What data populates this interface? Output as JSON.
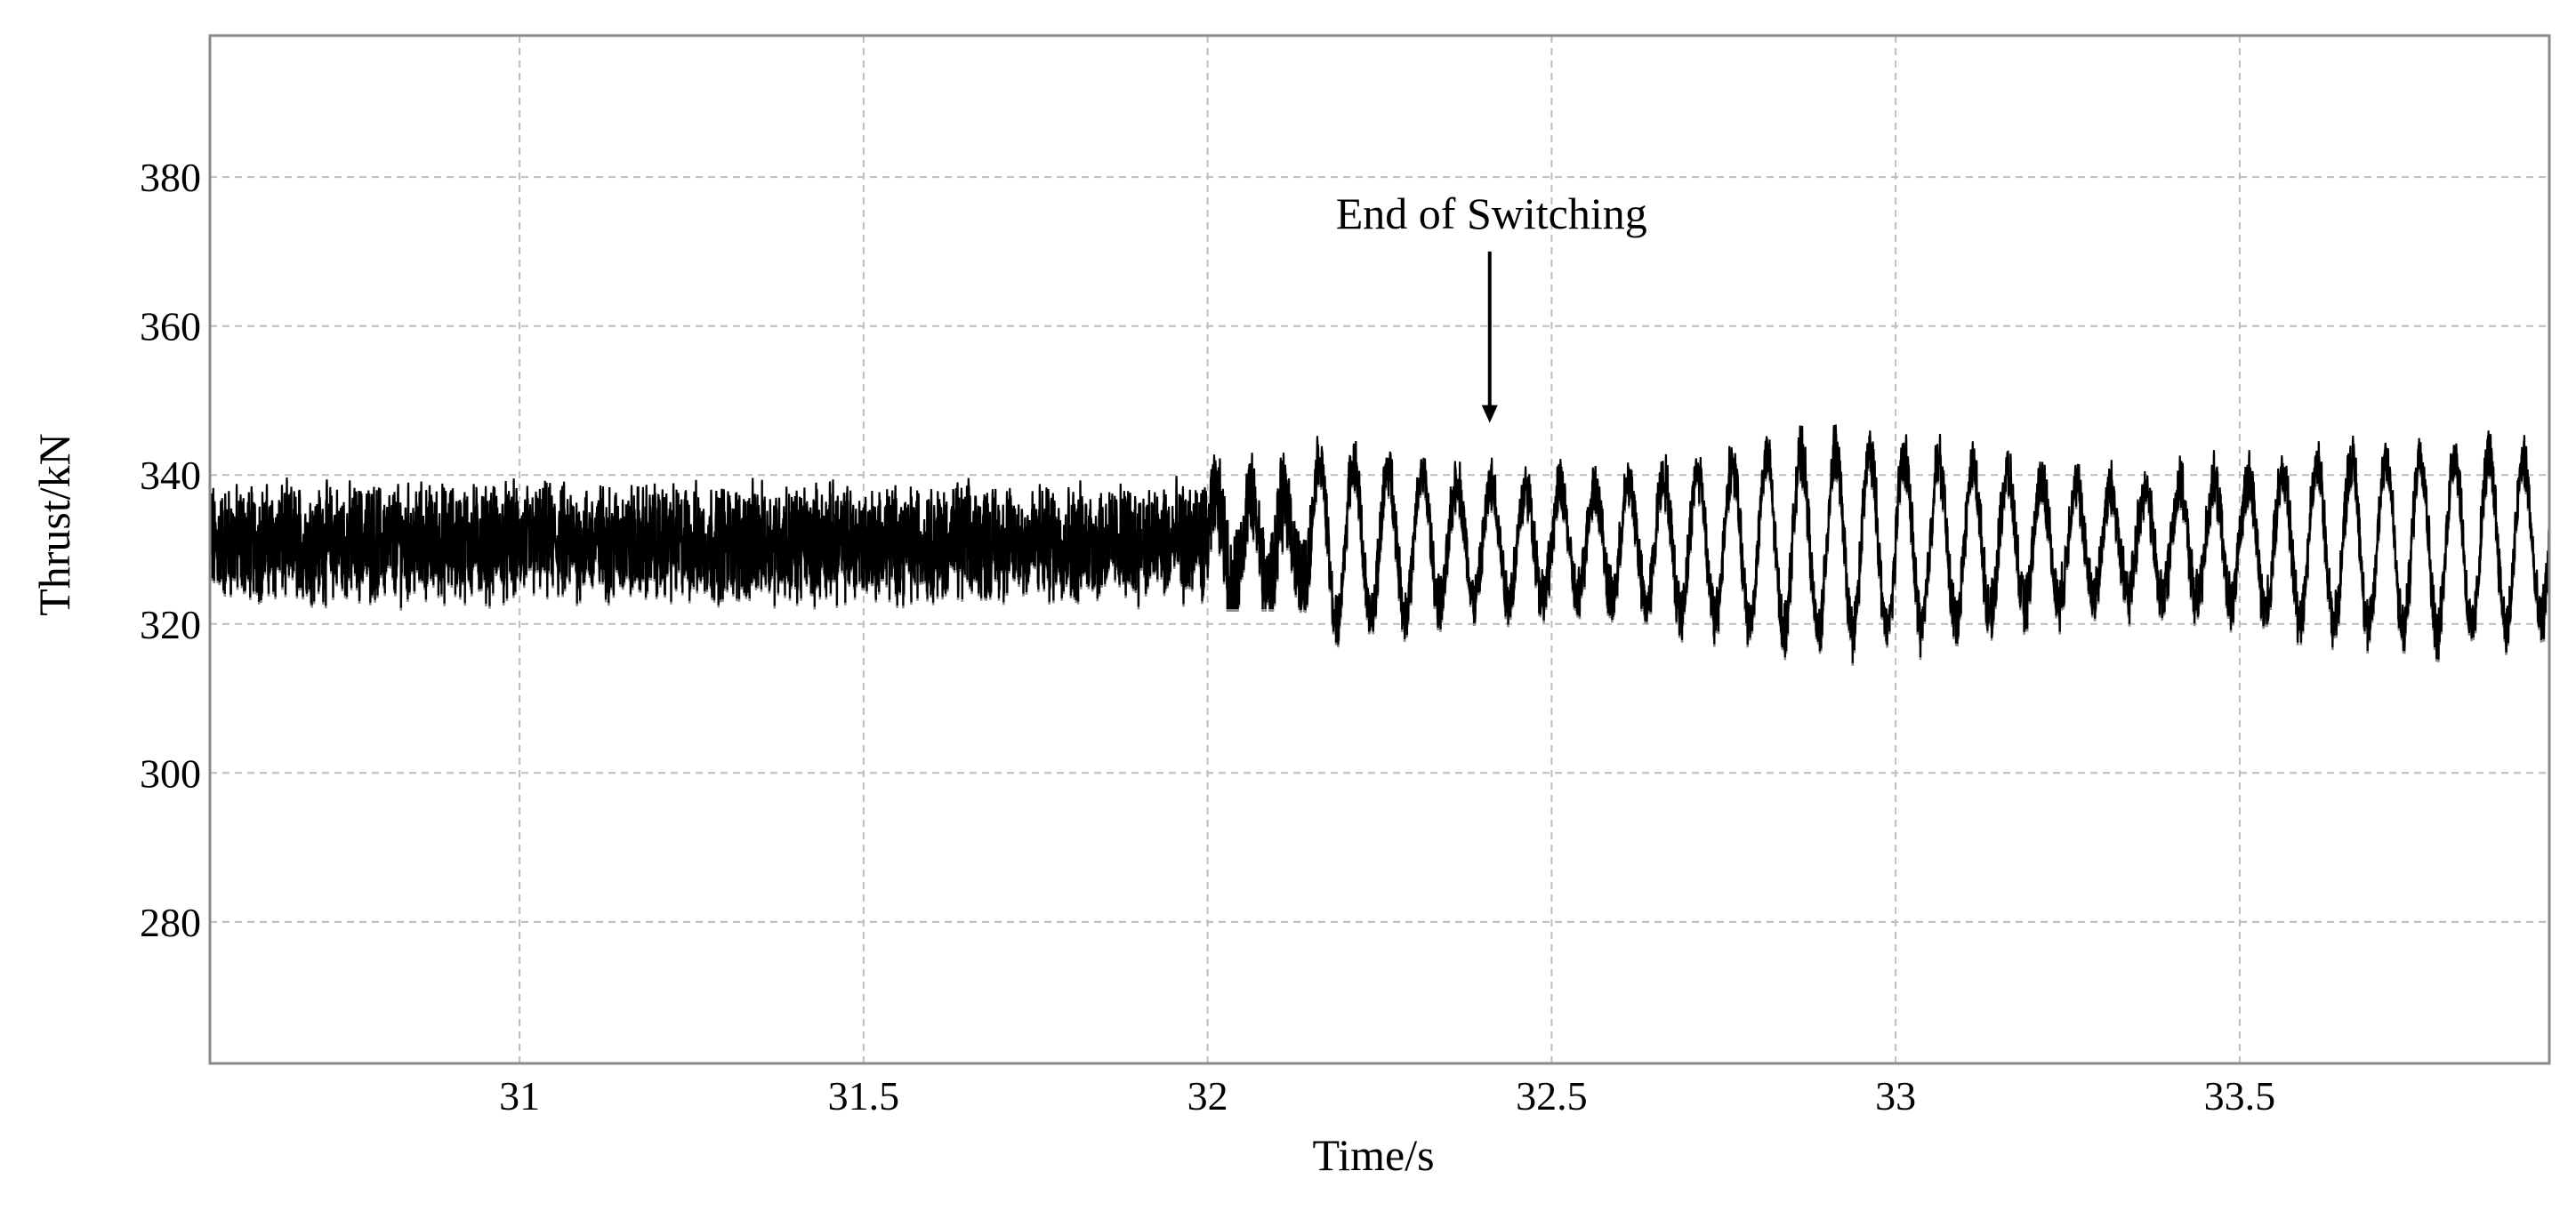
{
  "chart_data": {
    "type": "line",
    "title": "",
    "xlabel": "Time/s",
    "ylabel": "Thrust/kN",
    "xlim": [
      30.55,
      33.95
    ],
    "ylim": [
      261,
      399
    ],
    "xticks": [
      31,
      31.5,
      32,
      32.5,
      33,
      33.5
    ],
    "xtick_labels": [
      "31",
      "31.5",
      "32",
      "32.5",
      "33",
      "33.5"
    ],
    "yticks": [
      280,
      300,
      320,
      340,
      360,
      380
    ],
    "ytick_labels": [
      "280",
      "300",
      "320",
      "340",
      "360",
      "380"
    ],
    "grid": true,
    "legend": "none",
    "annotation": {
      "text": "End of Switching",
      "x": 32.41,
      "y_arrow_tip": 347,
      "y_arrow_tail": 370
    },
    "series": [
      {
        "color": "#000000",
        "shadow_color": "#8c8c8c",
        "segments": [
          {
            "x_start": 30.55,
            "x_end": 32.0,
            "center": 331,
            "noise_amplitude": 6,
            "oscillation_amplitude": 0,
            "min": 320,
            "max": 342
          },
          {
            "x_start": 32.0,
            "x_end": 32.15,
            "center": 331,
            "noise_amplitude": 5,
            "oscillation_amplitude": 6,
            "min": 322,
            "max": 343
          },
          {
            "x_start": 32.15,
            "x_end": 33.95,
            "center": 331,
            "noise_amplitude": 3,
            "oscillation_amplitude": 12,
            "oscillation_period_s": 0.05,
            "min": 312,
            "max": 350
          }
        ]
      }
    ]
  }
}
